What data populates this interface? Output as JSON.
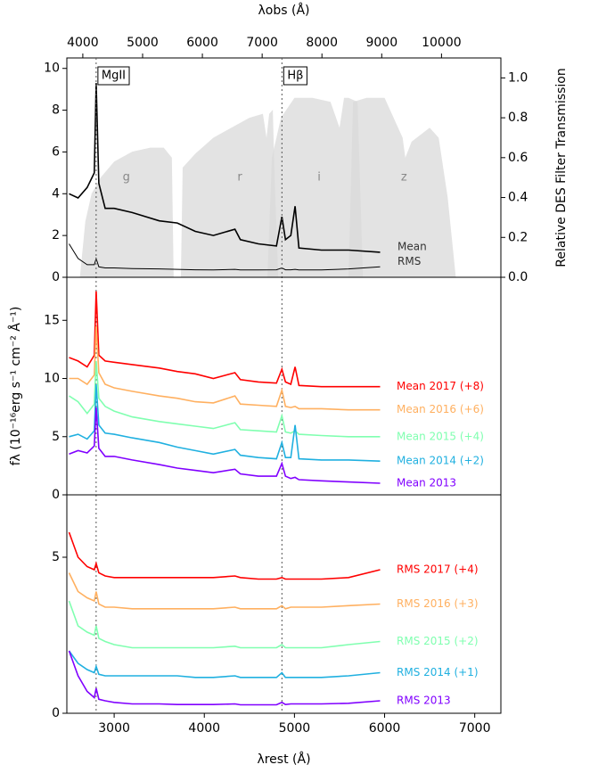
{
  "chart_data": [
    {
      "type": "line",
      "x": [
        2500,
        2600,
        2700,
        2780,
        2800,
        2830,
        2900,
        3000,
        3200,
        3500,
        3700,
        3900,
        4100,
        4340,
        4400,
        4600,
        4800,
        4861,
        4900,
        4960,
        5007,
        5050,
        5300,
        5600,
        5950
      ],
      "xlim": [
        2475,
        7290
      ],
      "x2label": "λobs (Å)",
      "x2lim": [
        3733,
        10993
      ],
      "x2ticks": [
        4000,
        5000,
        6000,
        7000,
        8000,
        9000,
        10000
      ],
      "ylim": [
        0,
        10.5
      ],
      "yticks": [
        0,
        2,
        4,
        6,
        8,
        10
      ],
      "y2label": "Relative DES Filter Transmission",
      "y2lim": [
        0,
        1.1
      ],
      "y2ticks": [
        {
          "value": 0,
          "label": "0.0"
        },
        0.2,
        0.4,
        0.6,
        0.8,
        {
          "value": 1,
          "label": "1.0"
        }
      ],
      "annotations": [
        {
          "text": "MgII",
          "x": 2800
        },
        {
          "text": "Hβ",
          "x": 4861
        }
      ],
      "series": [
        {
          "name": "Mean",
          "color": "#000000",
          "values": [
            4.0,
            3.8,
            4.3,
            5.0,
            9.3,
            4.5,
            3.3,
            3.3,
            3.1,
            2.7,
            2.6,
            2.2,
            2.0,
            2.3,
            1.8,
            1.6,
            1.5,
            2.9,
            1.8,
            2.0,
            3.4,
            1.4,
            1.3,
            1.3,
            1.2
          ]
        },
        {
          "name": "RMS",
          "color": "#000000",
          "values": [
            1.6,
            0.9,
            0.6,
            0.6,
            0.9,
            0.5,
            0.45,
            0.45,
            0.42,
            0.4,
            0.38,
            0.36,
            0.35,
            0.38,
            0.35,
            0.35,
            0.36,
            0.45,
            0.36,
            0.36,
            0.38,
            0.35,
            0.35,
            0.4,
            0.5
          ]
        },
        {
          "name": "g",
          "color": "#d9d9d9",
          "axis": "y2",
          "x": [
            2620,
            2680,
            2750,
            2850,
            3000,
            3200,
            3400,
            3550,
            3640,
            3660
          ],
          "values": [
            0,
            0.28,
            0.42,
            0.5,
            0.58,
            0.63,
            0.65,
            0.65,
            0.6,
            0
          ]
        },
        {
          "name": "r",
          "color": "#d9d9d9",
          "axis": "y2",
          "x": [
            3740,
            3760,
            3900,
            4100,
            4300,
            4500,
            4650,
            4690,
            4720,
            4760,
            4780,
            4820
          ],
          "values": [
            0,
            0.55,
            0.62,
            0.7,
            0.75,
            0.8,
            0.82,
            0.7,
            0.82,
            0.84,
            0.5,
            0
          ]
        },
        {
          "name": "i",
          "color": "#d9d9d9",
          "axis": "y2",
          "x": [
            4700,
            4750,
            4850,
            5000,
            5200,
            5400,
            5500,
            5550,
            5600,
            5700,
            5760
          ],
          "values": [
            0,
            0.6,
            0.8,
            0.9,
            0.9,
            0.88,
            0.75,
            0.9,
            0.9,
            0.88,
            0
          ]
        },
        {
          "name": "z",
          "color": "#d9d9d9",
          "axis": "y2",
          "x": [
            5600,
            5650,
            5800,
            6000,
            6200,
            6230,
            6300,
            6500,
            6600,
            6700,
            6790
          ],
          "values": [
            0,
            0.88,
            0.9,
            0.9,
            0.7,
            0.6,
            0.68,
            0.75,
            0.7,
            0.4,
            0
          ]
        }
      ]
    },
    {
      "type": "line",
      "x": [
        2500,
        2600,
        2700,
        2780,
        2800,
        2830,
        2900,
        3000,
        3200,
        3500,
        3700,
        3900,
        4100,
        4340,
        4400,
        4600,
        4800,
        4861,
        4900,
        4960,
        5007,
        5050,
        5300,
        5600,
        5950
      ],
      "xlim": [
        2475,
        7290
      ],
      "ylabel": "fλ (10⁻¹⁶erg s⁻¹ cm⁻² Å⁻¹)",
      "ylim": [
        0,
        18.7
      ],
      "yticks": [
        0,
        5,
        10,
        15
      ],
      "series": [
        {
          "name": "Mean 2017 (+8)",
          "color": "#ff0000",
          "values": [
            11.8,
            11.5,
            11.0,
            12.0,
            17.5,
            12.0,
            11.5,
            11.4,
            11.2,
            10.9,
            10.6,
            10.4,
            10.0,
            10.5,
            9.9,
            9.7,
            9.6,
            10.8,
            9.7,
            9.5,
            11.0,
            9.4,
            9.3,
            9.3,
            9.3
          ]
        },
        {
          "name": "Mean 2016 (+6)",
          "color": "#ffb060",
          "values": [
            10.0,
            10.0,
            9.5,
            10.3,
            14.5,
            10.5,
            9.5,
            9.2,
            8.9,
            8.5,
            8.3,
            8.0,
            7.9,
            8.5,
            7.8,
            7.7,
            7.6,
            9.0,
            7.6,
            7.5,
            7.6,
            7.4,
            7.4,
            7.3,
            7.3
          ]
        },
        {
          "name": "Mean 2015 (+4)",
          "color": "#80ffb0",
          "values": [
            8.5,
            8.0,
            7.0,
            7.8,
            11.5,
            8.3,
            7.6,
            7.2,
            6.7,
            6.3,
            6.1,
            5.9,
            5.7,
            6.2,
            5.6,
            5.5,
            5.4,
            6.8,
            5.4,
            5.3,
            5.5,
            5.2,
            5.1,
            5.0,
            5.0
          ]
        },
        {
          "name": "Mean 2014 (+2)",
          "color": "#20b0e0",
          "values": [
            5.0,
            5.2,
            4.8,
            5.5,
            9.5,
            6.0,
            5.3,
            5.2,
            4.9,
            4.5,
            4.1,
            3.8,
            3.5,
            3.9,
            3.4,
            3.2,
            3.1,
            4.5,
            3.2,
            3.2,
            6.0,
            3.1,
            3.0,
            3.0,
            2.9
          ]
        },
        {
          "name": "Mean 2013",
          "color": "#8000ff",
          "values": [
            3.5,
            3.8,
            3.6,
            4.2,
            7.5,
            4.0,
            3.3,
            3.3,
            3.0,
            2.6,
            2.3,
            2.1,
            1.9,
            2.2,
            1.8,
            1.6,
            1.6,
            2.7,
            1.6,
            1.4,
            1.5,
            1.3,
            1.2,
            1.1,
            1.0
          ]
        }
      ]
    },
    {
      "type": "line",
      "x": [
        2500,
        2600,
        2700,
        2780,
        2800,
        2830,
        2900,
        3000,
        3200,
        3500,
        3700,
        3900,
        4100,
        4340,
        4400,
        4600,
        4800,
        4861,
        4900,
        4960,
        5007,
        5050,
        5300,
        5600,
        5950
      ],
      "xlim": [
        2475,
        7290
      ],
      "xlabel": "λrest (Å)",
      "xticks": [
        3000,
        4000,
        5000,
        6000,
        7000
      ],
      "ylim": [
        0,
        7
      ],
      "yticks": [
        0,
        5
      ],
      "series": [
        {
          "name": "RMS 2017 (+4)",
          "color": "#ff0000",
          "values": [
            5.8,
            5.0,
            4.7,
            4.6,
            4.8,
            4.5,
            4.4,
            4.35,
            4.35,
            4.35,
            4.35,
            4.35,
            4.35,
            4.4,
            4.35,
            4.3,
            4.3,
            4.35,
            4.3,
            4.3,
            4.3,
            4.3,
            4.3,
            4.35,
            4.6
          ]
        },
        {
          "name": "RMS 2016 (+3)",
          "color": "#ffb060",
          "values": [
            4.5,
            3.9,
            3.7,
            3.6,
            3.9,
            3.5,
            3.4,
            3.4,
            3.35,
            3.35,
            3.35,
            3.35,
            3.35,
            3.4,
            3.35,
            3.35,
            3.35,
            3.45,
            3.35,
            3.4,
            3.4,
            3.4,
            3.4,
            3.45,
            3.5
          ]
        },
        {
          "name": "RMS 2015 (+2)",
          "color": "#80ffb0",
          "values": [
            3.6,
            2.8,
            2.6,
            2.5,
            2.8,
            2.4,
            2.3,
            2.2,
            2.1,
            2.1,
            2.1,
            2.1,
            2.1,
            2.15,
            2.1,
            2.1,
            2.1,
            2.2,
            2.1,
            2.1,
            2.1,
            2.1,
            2.1,
            2.2,
            2.3
          ]
        },
        {
          "name": "RMS 2014 (+1)",
          "color": "#20b0e0",
          "values": [
            2.0,
            1.6,
            1.4,
            1.3,
            1.5,
            1.25,
            1.2,
            1.2,
            1.2,
            1.2,
            1.2,
            1.15,
            1.15,
            1.2,
            1.15,
            1.15,
            1.15,
            1.3,
            1.15,
            1.15,
            1.15,
            1.15,
            1.15,
            1.2,
            1.3
          ]
        },
        {
          "name": "RMS 2013",
          "color": "#8000ff",
          "values": [
            2.0,
            1.2,
            0.7,
            0.5,
            0.8,
            0.45,
            0.4,
            0.35,
            0.3,
            0.3,
            0.28,
            0.28,
            0.28,
            0.3,
            0.27,
            0.27,
            0.27,
            0.35,
            0.28,
            0.3,
            0.3,
            0.3,
            0.3,
            0.32,
            0.4
          ]
        }
      ]
    }
  ]
}
